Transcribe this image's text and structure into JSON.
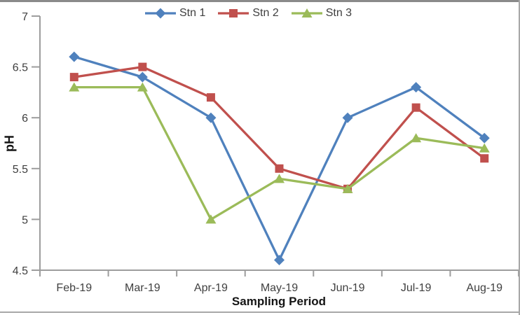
{
  "chart_data": {
    "type": "line",
    "xlabel": "Sampling Period",
    "ylabel": "pH",
    "categories": [
      "Feb-19",
      "Mar-19",
      "Apr-19",
      "May-19",
      "Jun-19",
      "Jul-19",
      "Aug-19"
    ],
    "series": [
      {
        "name": "Stn 1",
        "color": "#4F81BD",
        "marker": "diamond",
        "values": [
          6.6,
          6.4,
          6.0,
          4.6,
          6.0,
          6.3,
          5.8
        ]
      },
      {
        "name": "Stn 2",
        "color": "#C0504D",
        "marker": "square",
        "values": [
          6.4,
          6.5,
          6.2,
          5.5,
          5.3,
          6.1,
          5.6
        ]
      },
      {
        "name": "Stn 3",
        "color": "#9BBB59",
        "marker": "triangle",
        "values": [
          6.3,
          6.3,
          5.0,
          5.4,
          5.3,
          5.8,
          5.7
        ]
      }
    ],
    "ylim": [
      4.5,
      7
    ],
    "yticks": [
      4.5,
      5,
      5.5,
      6,
      6.5,
      7
    ],
    "ytick_labels": [
      "4.5",
      "5",
      "5.5",
      "6",
      "6.5",
      "7"
    ],
    "grid": false,
    "legend_position": "top",
    "axis_color": "#9d9d9d",
    "tick_label_color": "#3f3f3f",
    "frame_border_color": "#8a8a8a"
  }
}
